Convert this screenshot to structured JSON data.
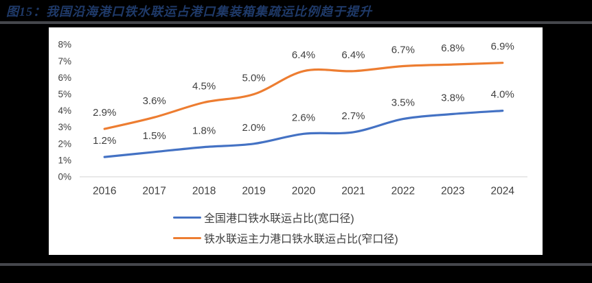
{
  "page": {
    "background": "#000000"
  },
  "header": {
    "title": "图15：我国沿海港口铁水联运占港口集装箱集疏运比例趋于提升",
    "title_color": "#1f3a69"
  },
  "separators": {
    "color": "#45474c"
  },
  "panel": {
    "background": "#ffffff"
  },
  "chart_data": {
    "type": "line",
    "smooth": true,
    "grid": false,
    "categories": [
      "2016",
      "2017",
      "2018",
      "2019",
      "2020",
      "2021",
      "2022",
      "2023",
      "2024"
    ],
    "series": [
      {
        "name": "全国港口铁水联运占比(宽口径)",
        "color": "#4472C4",
        "values": [
          1.2,
          1.5,
          1.8,
          2.0,
          2.6,
          2.7,
          3.5,
          3.8,
          4.0
        ],
        "labels": [
          "1.2%",
          "1.5%",
          "1.8%",
          "2.0%",
          "2.6%",
          "2.7%",
          "3.5%",
          "3.8%",
          "4.0%"
        ]
      },
      {
        "name": "铁水联运主力港口铁水联运占比(窄口径)",
        "color": "#ED7D31",
        "values": [
          2.9,
          3.6,
          4.5,
          5.0,
          6.4,
          6.4,
          6.7,
          6.8,
          6.9
        ],
        "labels": [
          "2.9%",
          "3.6%",
          "4.5%",
          "5.0%",
          "6.4%",
          "6.4%",
          "6.7%",
          "6.8%",
          "6.9%"
        ]
      }
    ],
    "ylim": [
      0,
      8
    ],
    "yticks": [
      "0%",
      "1%",
      "2%",
      "3%",
      "4%",
      "5%",
      "6%",
      "7%",
      "8%"
    ],
    "axis_line_color": "#d9d9d9",
    "label_color": "#3f3f3f",
    "legend_position": "bottom",
    "data_labels": "above"
  }
}
